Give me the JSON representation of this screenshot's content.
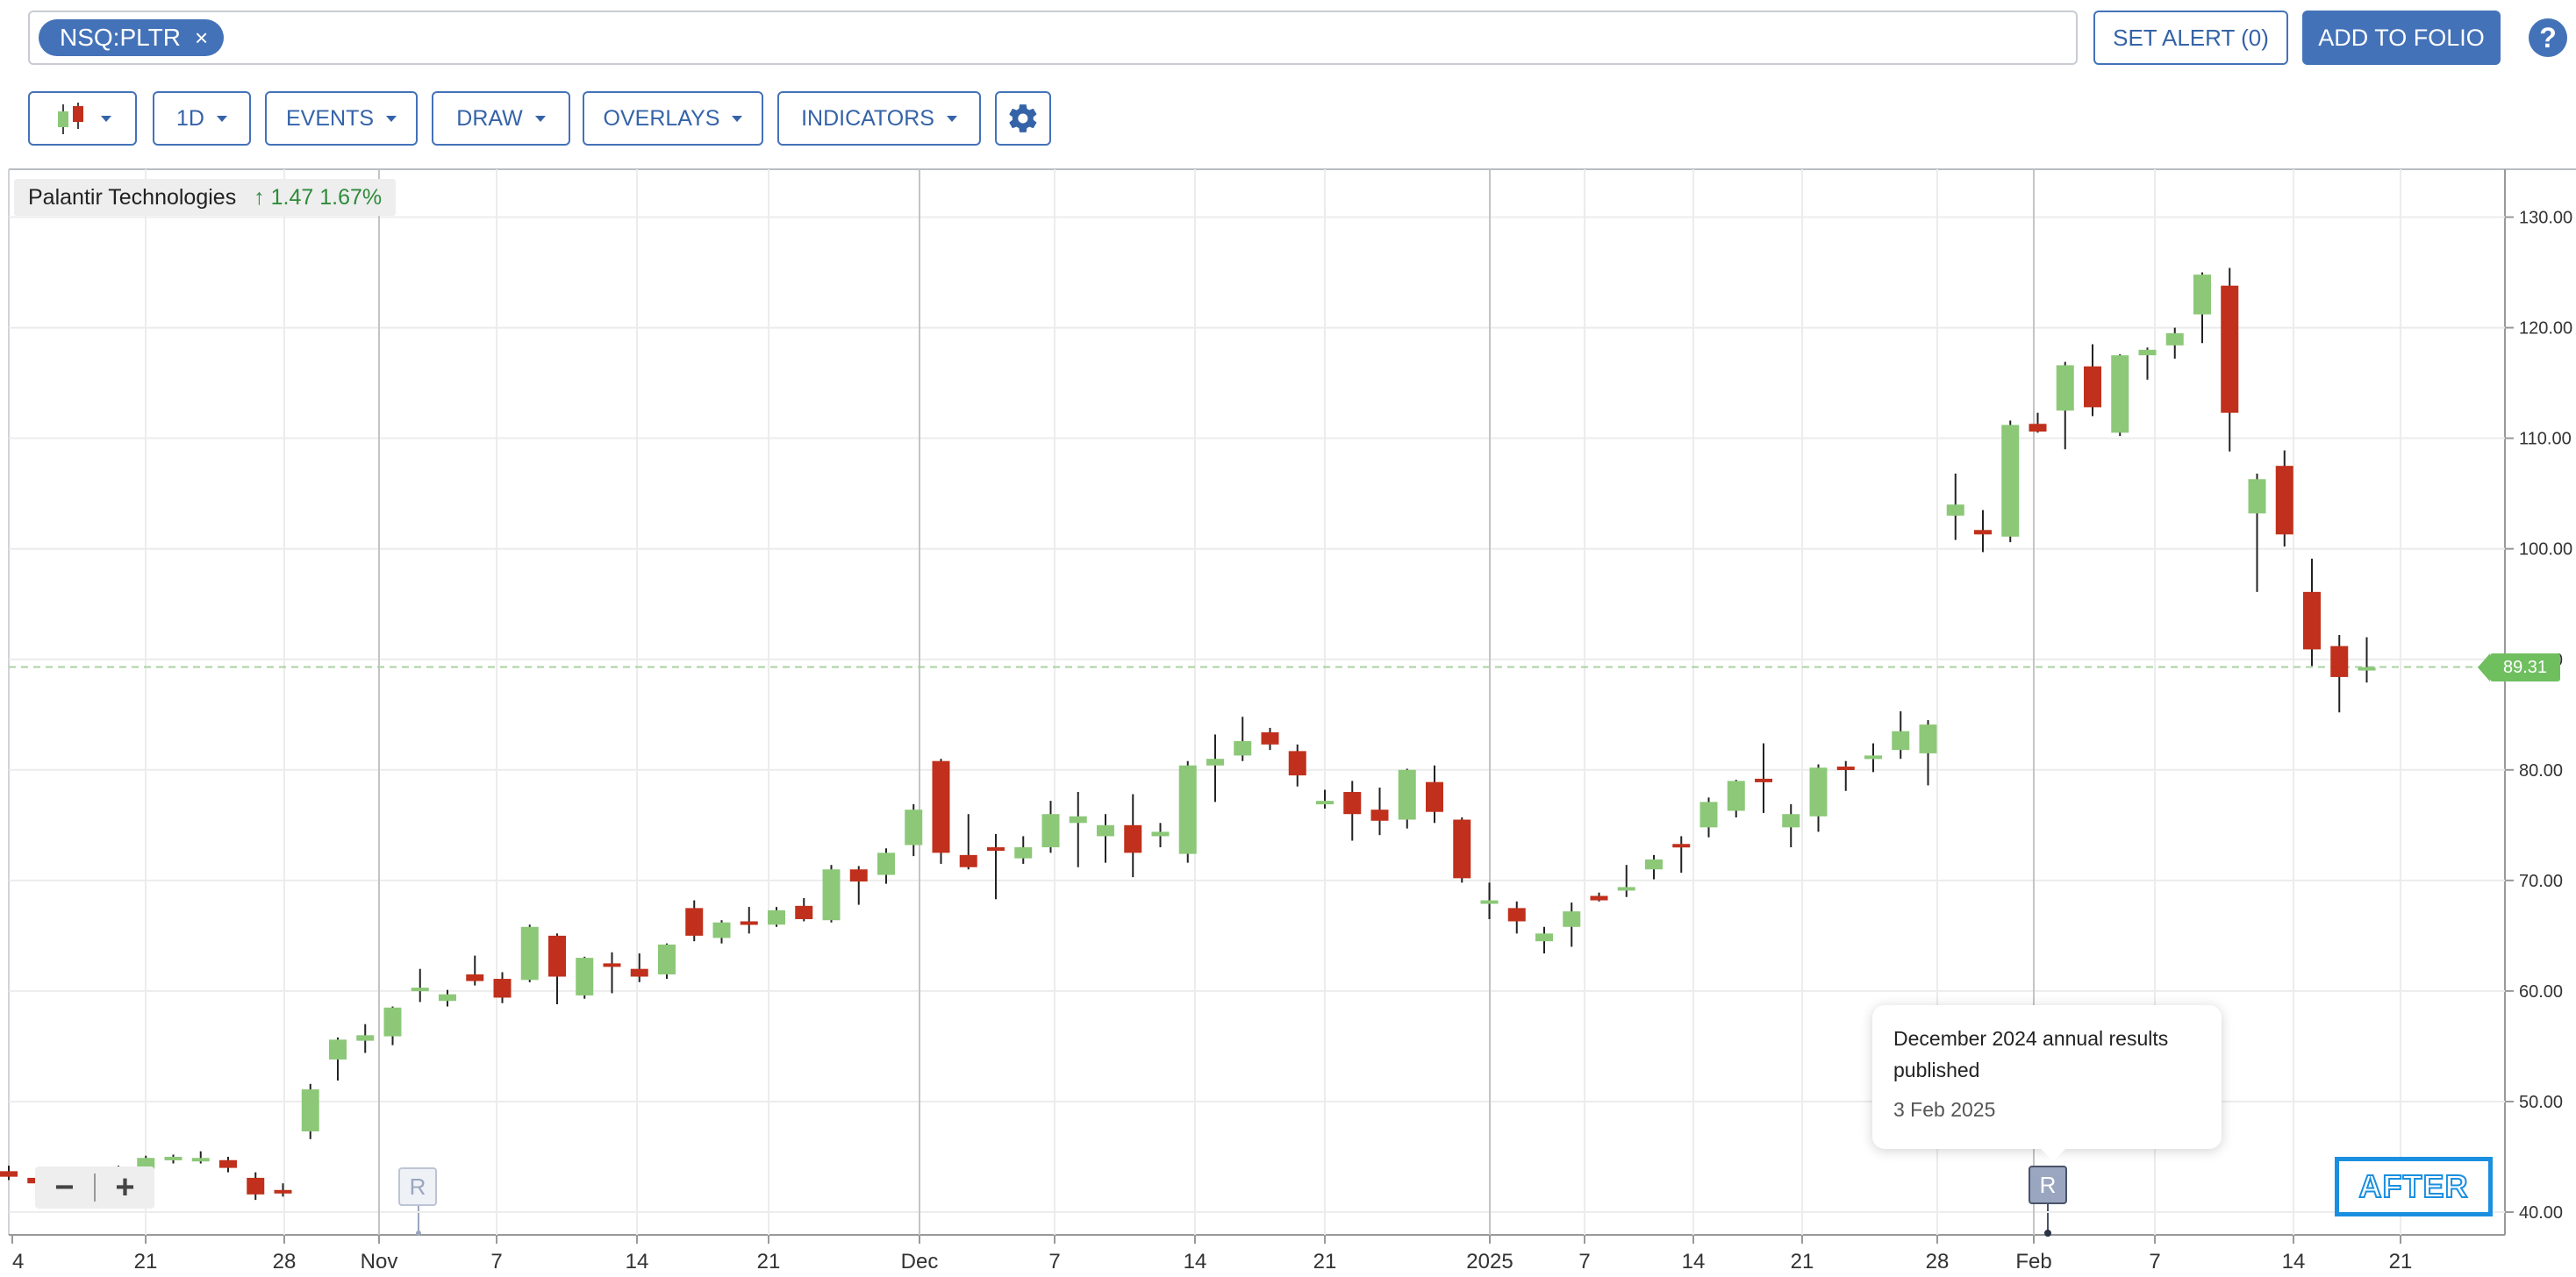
{
  "toolbar": {
    "symbol": "NSQ:PLTR",
    "remove_symbol": "×",
    "set_alert": "SET ALERT (0)",
    "add_to_folio": "ADD TO FOLIO",
    "help": "?",
    "interval": "1D",
    "events": "EVENTS",
    "draw": "DRAW",
    "overlays": "OVERLAYS",
    "indicators": "INDICATORS"
  },
  "legend": {
    "name": "Palantir Technologies",
    "change": "↑ 1.47 1.67%"
  },
  "last_price_label": "89.31",
  "zoom": {
    "minus": "−",
    "plus": "+"
  },
  "events": {
    "marker_label": "R",
    "tooltip_title": "December 2024 annual results published",
    "tooltip_date": "3 Feb 2025"
  },
  "badge": "AFTER",
  "colors": {
    "up": "#8cc878",
    "down": "#c0301c",
    "accent": "#4472b8"
  },
  "chart_data": {
    "type": "candlestick",
    "ylim": [
      38,
      133
    ],
    "y_ticks": [
      130,
      120,
      110,
      100,
      90,
      80,
      70,
      60,
      50,
      40
    ],
    "x_tick_labels": [
      "4",
      "21",
      "28",
      "Nov",
      "7",
      "14",
      "21",
      "Dec",
      "7",
      "14",
      "21",
      "2025",
      "7",
      "14",
      "21",
      "28",
      "Feb",
      "7",
      "14",
      "21"
    ],
    "last_price": 89.31,
    "candles": [
      {
        "o": 43.7,
        "h": 44.2,
        "l": 42.9,
        "c": 43.2
      },
      {
        "o": 43.1,
        "h": 43.6,
        "l": 42.3,
        "c": 42.6
      },
      {
        "o": 42.8,
        "h": 43.8,
        "l": 42.4,
        "c": 43.3
      },
      {
        "o": 42.6,
        "h": 43.9,
        "l": 42.0,
        "c": 43.4
      },
      {
        "o": 43.3,
        "h": 44.2,
        "l": 42.9,
        "c": 43.8
      },
      {
        "o": 43.9,
        "h": 45.1,
        "l": 43.4,
        "c": 44.9
      },
      {
        "o": 44.8,
        "h": 45.2,
        "l": 44.4,
        "c": 45.0
      },
      {
        "o": 44.8,
        "h": 45.5,
        "l": 44.4,
        "c": 44.9
      },
      {
        "o": 44.7,
        "h": 45.0,
        "l": 43.6,
        "c": 44.0
      },
      {
        "o": 43.1,
        "h": 43.6,
        "l": 41.1,
        "c": 41.6
      },
      {
        "o": 42.0,
        "h": 42.6,
        "l": 41.4,
        "c": 41.8
      },
      {
        "o": 47.3,
        "h": 51.6,
        "l": 46.6,
        "c": 51.1
      },
      {
        "o": 53.8,
        "h": 55.8,
        "l": 51.9,
        "c": 55.6
      },
      {
        "o": 55.5,
        "h": 57.0,
        "l": 54.4,
        "c": 56.0
      },
      {
        "o": 55.9,
        "h": 58.6,
        "l": 55.1,
        "c": 58.5
      },
      {
        "o": 60.0,
        "h": 62.0,
        "l": 59.0,
        "c": 60.3
      },
      {
        "o": 59.1,
        "h": 60.1,
        "l": 58.6,
        "c": 59.7
      },
      {
        "o": 61.5,
        "h": 63.2,
        "l": 60.5,
        "c": 60.9
      },
      {
        "o": 61.1,
        "h": 61.7,
        "l": 58.9,
        "c": 59.4
      },
      {
        "o": 61.0,
        "h": 66.0,
        "l": 60.8,
        "c": 65.8
      },
      {
        "o": 65.0,
        "h": 65.2,
        "l": 58.8,
        "c": 61.3
      },
      {
        "o": 59.6,
        "h": 63.1,
        "l": 59.3,
        "c": 63.0
      },
      {
        "o": 62.5,
        "h": 63.5,
        "l": 59.8,
        "c": 62.3
      },
      {
        "o": 62.0,
        "h": 63.4,
        "l": 60.8,
        "c": 61.3
      },
      {
        "o": 61.5,
        "h": 64.3,
        "l": 61.1,
        "c": 64.2
      },
      {
        "o": 67.5,
        "h": 68.2,
        "l": 64.5,
        "c": 65.0
      },
      {
        "o": 64.8,
        "h": 66.4,
        "l": 64.3,
        "c": 66.2
      },
      {
        "o": 66.3,
        "h": 67.6,
        "l": 65.2,
        "c": 66.0
      },
      {
        "o": 66.0,
        "h": 67.6,
        "l": 65.8,
        "c": 67.3
      },
      {
        "o": 67.7,
        "h": 68.4,
        "l": 66.3,
        "c": 66.5
      },
      {
        "o": 66.4,
        "h": 71.4,
        "l": 66.2,
        "c": 71.0
      },
      {
        "o": 71.0,
        "h": 71.3,
        "l": 67.8,
        "c": 69.9
      },
      {
        "o": 70.5,
        "h": 72.9,
        "l": 69.7,
        "c": 72.5
      },
      {
        "o": 73.2,
        "h": 76.9,
        "l": 72.2,
        "c": 76.4
      },
      {
        "o": 80.8,
        "h": 81.0,
        "l": 71.5,
        "c": 72.5
      },
      {
        "o": 72.3,
        "h": 76.0,
        "l": 71.0,
        "c": 71.2
      },
      {
        "o": 73.0,
        "h": 74.2,
        "l": 68.3,
        "c": 72.8
      },
      {
        "o": 72.0,
        "h": 74.0,
        "l": 71.5,
        "c": 73.0
      },
      {
        "o": 73.0,
        "h": 77.2,
        "l": 72.5,
        "c": 76.0
      },
      {
        "o": 75.2,
        "h": 78.0,
        "l": 71.2,
        "c": 75.8
      },
      {
        "o": 74.0,
        "h": 76.0,
        "l": 71.6,
        "c": 75.0
      },
      {
        "o": 75.0,
        "h": 77.8,
        "l": 70.3,
        "c": 72.5
      },
      {
        "o": 74.0,
        "h": 75.2,
        "l": 73.0,
        "c": 74.4
      },
      {
        "o": 72.4,
        "h": 80.8,
        "l": 71.6,
        "c": 80.4
      },
      {
        "o": 80.4,
        "h": 83.2,
        "l": 77.1,
        "c": 81.0
      },
      {
        "o": 81.3,
        "h": 84.8,
        "l": 80.8,
        "c": 82.6
      },
      {
        "o": 83.4,
        "h": 83.8,
        "l": 81.8,
        "c": 82.3
      },
      {
        "o": 81.7,
        "h": 82.3,
        "l": 78.5,
        "c": 79.5
      },
      {
        "o": 77.0,
        "h": 78.2,
        "l": 76.5,
        "c": 77.2
      },
      {
        "o": 78.0,
        "h": 79.0,
        "l": 73.6,
        "c": 76.0
      },
      {
        "o": 76.4,
        "h": 78.4,
        "l": 74.1,
        "c": 75.4
      },
      {
        "o": 75.5,
        "h": 80.1,
        "l": 74.7,
        "c": 80.0
      },
      {
        "o": 78.9,
        "h": 80.4,
        "l": 75.2,
        "c": 76.2
      },
      {
        "o": 75.5,
        "h": 75.7,
        "l": 69.8,
        "c": 70.2
      },
      {
        "o": 68.0,
        "h": 69.8,
        "l": 66.5,
        "c": 68.2
      },
      {
        "o": 67.5,
        "h": 68.1,
        "l": 65.2,
        "c": 66.3
      },
      {
        "o": 64.5,
        "h": 65.8,
        "l": 63.4,
        "c": 65.2
      },
      {
        "o": 65.8,
        "h": 68.0,
        "l": 64.0,
        "c": 67.2
      },
      {
        "o": 68.6,
        "h": 68.9,
        "l": 68.1,
        "c": 68.2
      },
      {
        "o": 69.2,
        "h": 71.4,
        "l": 68.5,
        "c": 69.4
      },
      {
        "o": 71.0,
        "h": 72.3,
        "l": 70.1,
        "c": 71.9
      },
      {
        "o": 73.3,
        "h": 74.0,
        "l": 70.7,
        "c": 73.0
      },
      {
        "o": 74.8,
        "h": 77.5,
        "l": 73.9,
        "c": 77.1
      },
      {
        "o": 76.3,
        "h": 79.1,
        "l": 75.7,
        "c": 79.0
      },
      {
        "o": 79.2,
        "h": 82.4,
        "l": 76.1,
        "c": 79.0
      },
      {
        "o": 74.8,
        "h": 76.9,
        "l": 73.0,
        "c": 76.0
      },
      {
        "o": 75.8,
        "h": 80.5,
        "l": 74.4,
        "c": 80.2
      },
      {
        "o": 80.3,
        "h": 80.8,
        "l": 78.1,
        "c": 80.0
      },
      {
        "o": 81.3,
        "h": 82.4,
        "l": 79.8,
        "c": 81.3
      },
      {
        "o": 81.8,
        "h": 85.3,
        "l": 81.0,
        "c": 83.5
      },
      {
        "o": 81.5,
        "h": 84.5,
        "l": 78.6,
        "c": 84.1
      },
      {
        "o": 103.0,
        "h": 106.8,
        "l": 100.8,
        "c": 104.0
      },
      {
        "o": 101.7,
        "h": 103.5,
        "l": 99.7,
        "c": 101.3
      },
      {
        "o": 101.1,
        "h": 111.6,
        "l": 100.6,
        "c": 111.2
      },
      {
        "o": 111.3,
        "h": 112.3,
        "l": 110.5,
        "c": 110.6
      },
      {
        "o": 112.5,
        "h": 116.9,
        "l": 109.0,
        "c": 116.6
      },
      {
        "o": 116.5,
        "h": 118.5,
        "l": 112.0,
        "c": 112.8
      },
      {
        "o": 110.5,
        "h": 117.6,
        "l": 110.2,
        "c": 117.5
      },
      {
        "o": 117.5,
        "h": 118.2,
        "l": 115.3,
        "c": 118.0
      },
      {
        "o": 118.4,
        "h": 120.0,
        "l": 117.2,
        "c": 119.5
      },
      {
        "o": 121.2,
        "h": 125.0,
        "l": 118.6,
        "c": 124.8
      },
      {
        "o": 123.8,
        "h": 125.4,
        "l": 108.8,
        "c": 112.3
      },
      {
        "o": 103.2,
        "h": 106.8,
        "l": 96.1,
        "c": 106.3
      },
      {
        "o": 107.5,
        "h": 108.9,
        "l": 100.2,
        "c": 101.3
      },
      {
        "o": 96.1,
        "h": 99.1,
        "l": 89.4,
        "c": 90.9
      },
      {
        "o": 91.2,
        "h": 92.2,
        "l": 85.2,
        "c": 88.4
      },
      {
        "o": 89.3,
        "h": 92.0,
        "l": 87.9,
        "c": 89.3
      }
    ]
  }
}
